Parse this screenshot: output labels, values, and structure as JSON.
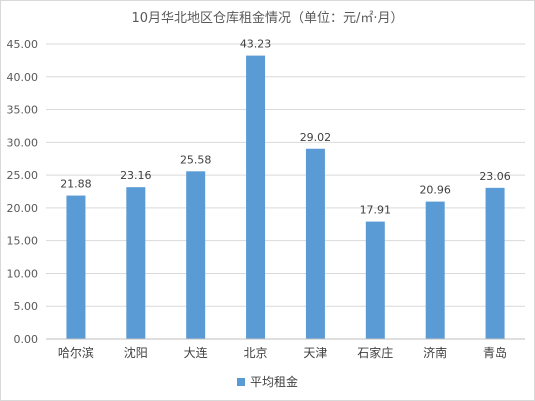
{
  "chart_data": {
    "type": "bar",
    "title": "10月华北地区仓库租金情况（单位：元/㎡·月）",
    "categories": [
      "哈尔滨",
      "沈阳",
      "大连",
      "北京",
      "天津",
      "石家庄",
      "济南",
      "青岛"
    ],
    "series": [
      {
        "name": "平均租金",
        "values": [
          21.88,
          23.16,
          25.58,
          43.23,
          29.02,
          17.91,
          20.96,
          23.06
        ]
      }
    ],
    "value_labels": [
      "21.88",
      "23.16",
      "25.58",
      "43.23",
      "29.02",
      "17.91",
      "20.96",
      "23.06"
    ],
    "ylim": [
      0,
      45
    ],
    "y_ticks": [
      "0.00",
      "5.00",
      "10.00",
      "15.00",
      "20.00",
      "25.00",
      "30.00",
      "35.00",
      "40.00",
      "45.00"
    ],
    "grid": true,
    "legend_position": "bottom",
    "colors": {
      "bar": "#5b9bd5",
      "grid": "#d9d9d9",
      "axis": "#bfbfbf"
    }
  }
}
